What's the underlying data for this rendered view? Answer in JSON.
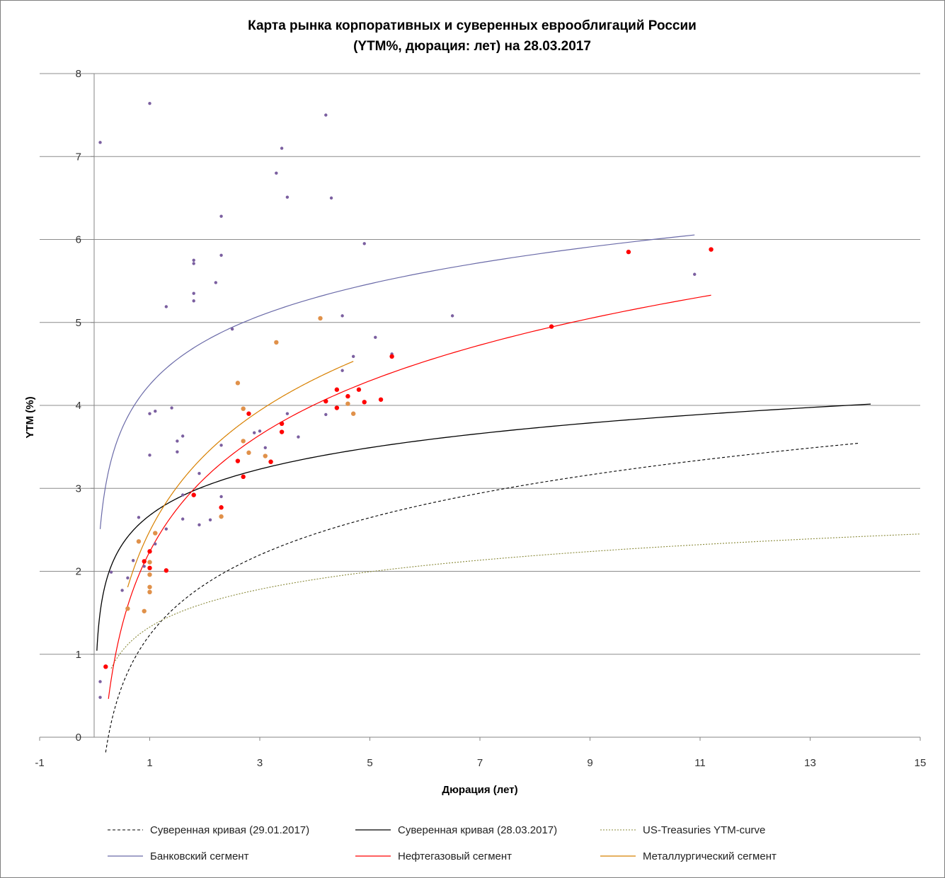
{
  "chart_data": {
    "type": "scatter",
    "title": [
      "Карта рынка корпоративных и суверенных еврооблигаций России",
      "(YTM%, дюрация: лет) на 28.03.2017"
    ],
    "xlabel": "Дюрация (лет)",
    "ylabel": "YTM (%)",
    "xlim": [
      -1,
      15
    ],
    "ylim": [
      0,
      8
    ],
    "x_ticks": [
      "-1",
      "1",
      "3",
      "5",
      "7",
      "9",
      "11",
      "13",
      "15"
    ],
    "y_ticks": [
      "0",
      "1",
      "2",
      "3",
      "4",
      "5",
      "6",
      "7",
      "8"
    ],
    "grid": "horizontal",
    "legend_position": "bottom",
    "colors": {
      "bank": "#7b5fa0",
      "oilgas": "#ff0000",
      "metal": "#e0914a",
      "sov_old": "#000000",
      "sov_new": "#000000",
      "ust": "#8a8a3a",
      "bank_line": "#6a6aa8",
      "oil_line": "#ff0000",
      "metal_line": "#d88000"
    },
    "scatter_series": [
      {
        "key": "bank",
        "points": [
          [
            0.1,
            7.17
          ],
          [
            1.0,
            7.64
          ],
          [
            4.2,
            7.5
          ],
          [
            3.4,
            7.1
          ],
          [
            3.3,
            6.8
          ],
          [
            3.5,
            6.51
          ],
          [
            4.3,
            6.5
          ],
          [
            2.3,
            6.28
          ],
          [
            4.9,
            5.95
          ],
          [
            2.3,
            5.81
          ],
          [
            1.8,
            5.75
          ],
          [
            1.8,
            5.71
          ],
          [
            10.9,
            5.58
          ],
          [
            2.2,
            5.48
          ],
          [
            1.8,
            5.35
          ],
          [
            1.8,
            5.26
          ],
          [
            1.3,
            5.19
          ],
          [
            4.5,
            5.08
          ],
          [
            6.5,
            5.08
          ],
          [
            2.5,
            4.92
          ],
          [
            5.1,
            4.82
          ],
          [
            5.4,
            4.62
          ],
          [
            4.7,
            4.59
          ],
          [
            4.5,
            4.42
          ],
          [
            1.4,
            3.97
          ],
          [
            1.1,
            3.93
          ],
          [
            1.0,
            3.9
          ],
          [
            3.5,
            3.9
          ],
          [
            4.2,
            3.89
          ],
          [
            3.0,
            3.69
          ],
          [
            2.9,
            3.67
          ],
          [
            1.6,
            3.63
          ],
          [
            3.7,
            3.62
          ],
          [
            1.5,
            3.57
          ],
          [
            2.3,
            3.52
          ],
          [
            3.1,
            3.49
          ],
          [
            1.5,
            3.44
          ],
          [
            1.0,
            3.4
          ],
          [
            1.9,
            3.18
          ],
          [
            1.6,
            2.92
          ],
          [
            2.3,
            2.9
          ],
          [
            0.8,
            2.65
          ],
          [
            1.6,
            2.63
          ],
          [
            2.1,
            2.62
          ],
          [
            1.9,
            2.56
          ],
          [
            1.3,
            2.51
          ],
          [
            1.1,
            2.33
          ],
          [
            0.7,
            2.13
          ],
          [
            0.9,
            2.06
          ],
          [
            0.6,
            1.92
          ],
          [
            0.3,
            1.99
          ],
          [
            0.5,
            1.77
          ],
          [
            0.1,
            0.67
          ],
          [
            0.1,
            0.48
          ]
        ],
        "r": 2.2
      },
      {
        "key": "metal",
        "points": [
          [
            4.1,
            5.05
          ],
          [
            3.3,
            4.76
          ],
          [
            2.6,
            4.27
          ],
          [
            4.6,
            4.02
          ],
          [
            2.7,
            3.96
          ],
          [
            4.7,
            3.9
          ],
          [
            2.7,
            3.57
          ],
          [
            2.8,
            3.43
          ],
          [
            3.1,
            3.39
          ],
          [
            3.2,
            3.32
          ],
          [
            2.3,
            2.66
          ],
          [
            1.1,
            2.46
          ],
          [
            0.8,
            2.36
          ],
          [
            1.0,
            2.11
          ],
          [
            1.0,
            1.96
          ],
          [
            1.0,
            1.81
          ],
          [
            1.0,
            1.75
          ],
          [
            0.6,
            1.55
          ],
          [
            0.9,
            1.52
          ]
        ],
        "r": 3.2
      },
      {
        "key": "oilgas",
        "points": [
          [
            11.2,
            5.88
          ],
          [
            9.7,
            5.85
          ],
          [
            8.3,
            4.95
          ],
          [
            5.4,
            4.59
          ],
          [
            4.4,
            4.19
          ],
          [
            4.8,
            4.19
          ],
          [
            4.6,
            4.11
          ],
          [
            5.2,
            4.07
          ],
          [
            4.2,
            4.05
          ],
          [
            4.9,
            4.04
          ],
          [
            4.4,
            3.97
          ],
          [
            2.8,
            3.9
          ],
          [
            3.4,
            3.78
          ],
          [
            3.4,
            3.68
          ],
          [
            2.6,
            3.33
          ],
          [
            3.2,
            3.32
          ],
          [
            2.7,
            3.14
          ],
          [
            1.8,
            2.92
          ],
          [
            2.3,
            2.77
          ],
          [
            1.0,
            2.24
          ],
          [
            0.9,
            2.12
          ],
          [
            1.0,
            2.04
          ],
          [
            1.3,
            2.01
          ],
          [
            0.2,
            0.85
          ]
        ],
        "r": 3.2
      }
    ],
    "curves": [
      {
        "key": "sov_old",
        "name": "Суверенная кривая (29.01.2017)",
        "dash": "4,3",
        "width": 1.1,
        "x_range": [
          0.2,
          13.9
        ],
        "fn": "log",
        "a": 1.2318,
        "b": 0.8789
      },
      {
        "key": "sov_new",
        "name": "Суверенная кривая (28.03.2017)",
        "dash": "",
        "width": 1.3,
        "x_range": [
          0.04,
          14.1
        ],
        "fn": "log",
        "a": 2.6745,
        "b": 0.5069
      },
      {
        "key": "ust",
        "name": "US-Treasuries YTM-curve",
        "dash": "2,2",
        "width": 1.1,
        "x_range": [
          0.3,
          15
        ],
        "fn": "log",
        "a": 1.3276,
        "b": 0.4145
      },
      {
        "key": "bank_line",
        "name": "Банковский сегмент",
        "dash": "",
        "width": 1.2,
        "x_range": [
          0.1,
          10.9
        ],
        "fn": "log",
        "a": 4.2495,
        "b": 0.7557
      },
      {
        "key": "oil_line",
        "name": "Нефтегазовый сегмент",
        "dash": "",
        "width": 1.2,
        "x_range": [
          0.25,
          11.2
        ],
        "fn": "log",
        "a": 2.2366,
        "b": 1.2798
      },
      {
        "key": "metal_line",
        "name": "Металлургический сегмент",
        "dash": "",
        "width": 1.2,
        "x_range": [
          0.6,
          4.7
        ],
        "fn": "log",
        "a": 2.4839,
        "b": 1.3231
      }
    ]
  }
}
